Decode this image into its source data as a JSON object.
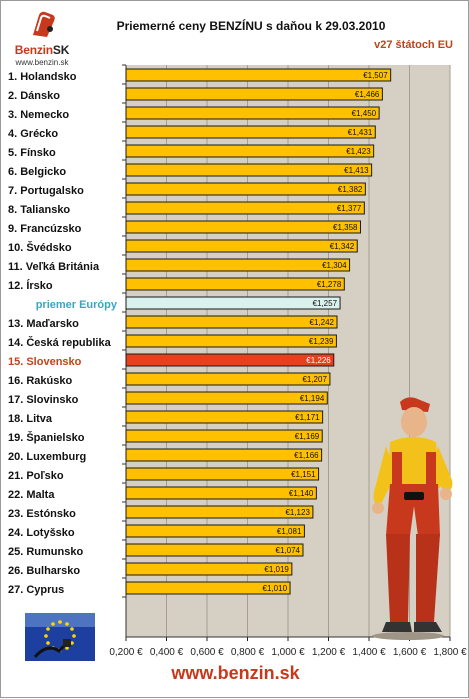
{
  "header": {
    "title": "Priemerné ceny BENZÍNU s daňou k 29.03.2010",
    "subtitle": "v27 štátoch EU"
  },
  "logo": {
    "brand_main": "Benzin",
    "brand_suffix": "SK",
    "url": "www.benzin.sk"
  },
  "footer": {
    "url": "www.benzin.sk"
  },
  "colors": {
    "bar": "#ffc000",
    "average_bar": "#d9f2ee",
    "highlight_bar": "#e8401c",
    "plot_background": "#d6d0c4",
    "highlight_text": "#c0441a",
    "average_text": "#3aa6c2"
  },
  "chart_data": {
    "type": "bar",
    "orientation": "horizontal",
    "categories": [
      "1. Holandsko",
      "2. Dánsko",
      "3. Nemecko",
      "4. Grécko",
      "5. Fínsko",
      "6. Belgicko",
      "7. Portugalsko",
      "8. Taliansko",
      "9. Francúzsko",
      "10. Švédsko",
      "11. Veľká Británia",
      "12. Írsko",
      "priemer Európy",
      "13. Maďarsko",
      "14. Česká republika",
      "15. Slovensko",
      "16. Rakúsko",
      "17. Slovinsko",
      "18. Litva",
      "19. Španielsko",
      "20. Luxemburg",
      "21. Poľsko",
      "22. Malta",
      "23. Estónsko",
      "24. Lotyšsko",
      "25. Rumunsko",
      "26. Bulharsko",
      "27. Cyprus"
    ],
    "values": [
      1.507,
      1.466,
      1.45,
      1.431,
      1.423,
      1.413,
      1.382,
      1.377,
      1.358,
      1.342,
      1.304,
      1.278,
      1.257,
      1.242,
      1.239,
      1.226,
      1.207,
      1.194,
      1.171,
      1.169,
      1.166,
      1.151,
      1.14,
      1.123,
      1.081,
      1.074,
      1.019,
      1.01
    ],
    "value_labels": [
      "€1,507",
      "€1,466",
      "€1,450",
      "€1,431",
      "€1,423",
      "€1,413",
      "€1,382",
      "€1,377",
      "€1,358",
      "€1,342",
      "€1,304",
      "€1,278",
      "€1,257",
      "€1,242",
      "€1,239",
      "€1,226",
      "€1,207",
      "€1,194",
      "€1,171",
      "€1,169",
      "€1,166",
      "€1,151",
      "€1,140",
      "€1,123",
      "€1,081",
      "€1,074",
      "€1,019",
      "€1,010"
    ],
    "average_index": 12,
    "highlight_index": 15,
    "xlim": [
      0.2,
      1.8
    ],
    "x_ticks": [
      0.2,
      0.4,
      0.6,
      0.8,
      1.0,
      1.2,
      1.4,
      1.6,
      1.8
    ],
    "x_tick_labels": [
      "0,200 €",
      "0,400 €",
      "0,600 €",
      "0,800 €",
      "1,000 €",
      "1,200 €",
      "1,400 €",
      "1,600 €",
      "1,800 €"
    ],
    "grid": "vertical"
  }
}
